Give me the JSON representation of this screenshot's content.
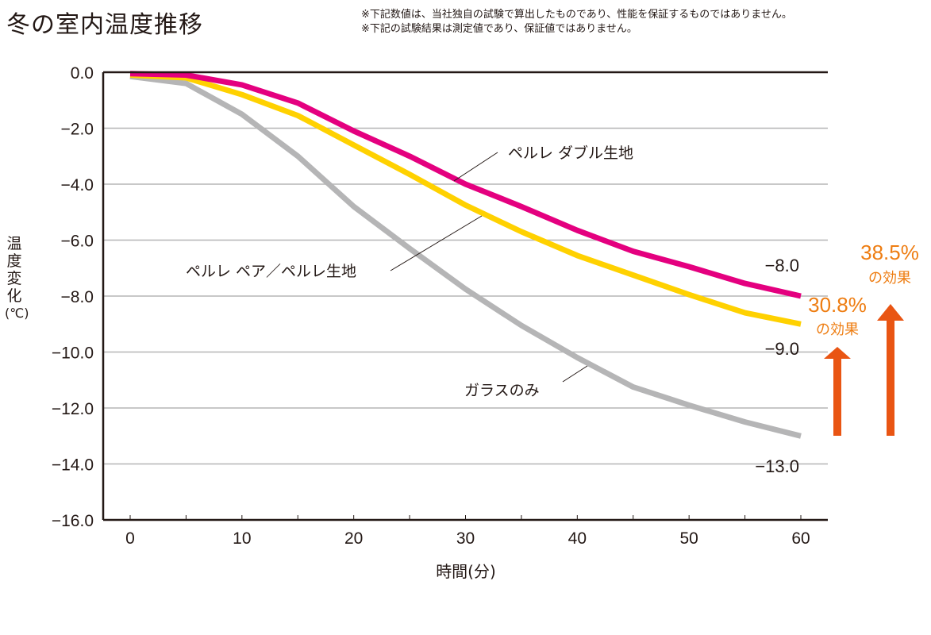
{
  "header": {
    "title": "冬の室内温度推移",
    "notes": [
      "※下記数値は、当社独自の試験で算出したものであり、性能を保証するものではありません。",
      "※下記の試験結果は測定値であり、保証値ではありません。"
    ]
  },
  "chart_data": {
    "type": "line",
    "title": "冬の室内温度推移",
    "xlabel": "時間(分)",
    "ylabel": "温度変化(℃)",
    "ylabel_chars": [
      "温",
      "度",
      "変",
      "化",
      "(℃)"
    ],
    "xlim": [
      0,
      60
    ],
    "ylim": [
      -16.0,
      0.0
    ],
    "xticks": [
      0,
      10,
      20,
      30,
      40,
      50,
      60
    ],
    "xtick_minor": [
      5,
      15,
      25,
      35,
      45,
      55
    ],
    "yticks": [
      0.0,
      -2.0,
      -4.0,
      -6.0,
      -8.0,
      -10.0,
      -12.0,
      -14.0,
      -16.0
    ],
    "ytick_labels": [
      "0.0",
      "−2.0",
      "−4.0",
      "−6.0",
      "−8.0",
      "−10.0",
      "−12.0",
      "−14.0",
      "−16.0"
    ],
    "grid": true,
    "x": [
      0,
      5,
      10,
      15,
      20,
      25,
      30,
      35,
      40,
      45,
      50,
      55,
      60
    ],
    "series": [
      {
        "name": "ペルレ ダブル生地",
        "color": "#e4007f",
        "values": [
          -0.05,
          -0.1,
          -0.45,
          -1.1,
          -2.1,
          -3.0,
          -4.0,
          -4.8,
          -5.65,
          -6.4,
          -6.95,
          -7.55,
          -8.0
        ],
        "end_label": "−8.0"
      },
      {
        "name": "ペルレ ペア／ペルレ生地",
        "color": "#ffd100",
        "values": [
          -0.1,
          -0.2,
          -0.8,
          -1.55,
          -2.6,
          -3.65,
          -4.75,
          -5.7,
          -6.55,
          -7.25,
          -7.95,
          -8.6,
          -9.0
        ],
        "end_label": "−9.0"
      },
      {
        "name": "ガラスのみ",
        "color": "#b5b5b6",
        "values": [
          -0.15,
          -0.4,
          -1.5,
          -3.0,
          -4.8,
          -6.3,
          -7.75,
          -9.05,
          -10.2,
          -11.25,
          -11.9,
          -12.5,
          -13.0
        ],
        "end_label": "−13.0"
      }
    ],
    "annotations": [
      {
        "text": "ペルレ ダブル生地",
        "series": 0
      },
      {
        "text": "ペルレ ペア／ペルレ生地",
        "series": 1
      },
      {
        "text": "ガラスのみ",
        "series": 2
      }
    ],
    "effects": [
      {
        "percent": "30.8%",
        "label": "の効果",
        "compare": "ペルレ ペア／ペルレ生地 vs ガラスのみ"
      },
      {
        "percent": "38.5%",
        "label": "の効果",
        "compare": "ペルレ ダブル生地 vs ガラスのみ"
      }
    ],
    "effect_color": "#ee7d12",
    "arrow_color": "#e95513",
    "legend": "inline-annotations"
  }
}
